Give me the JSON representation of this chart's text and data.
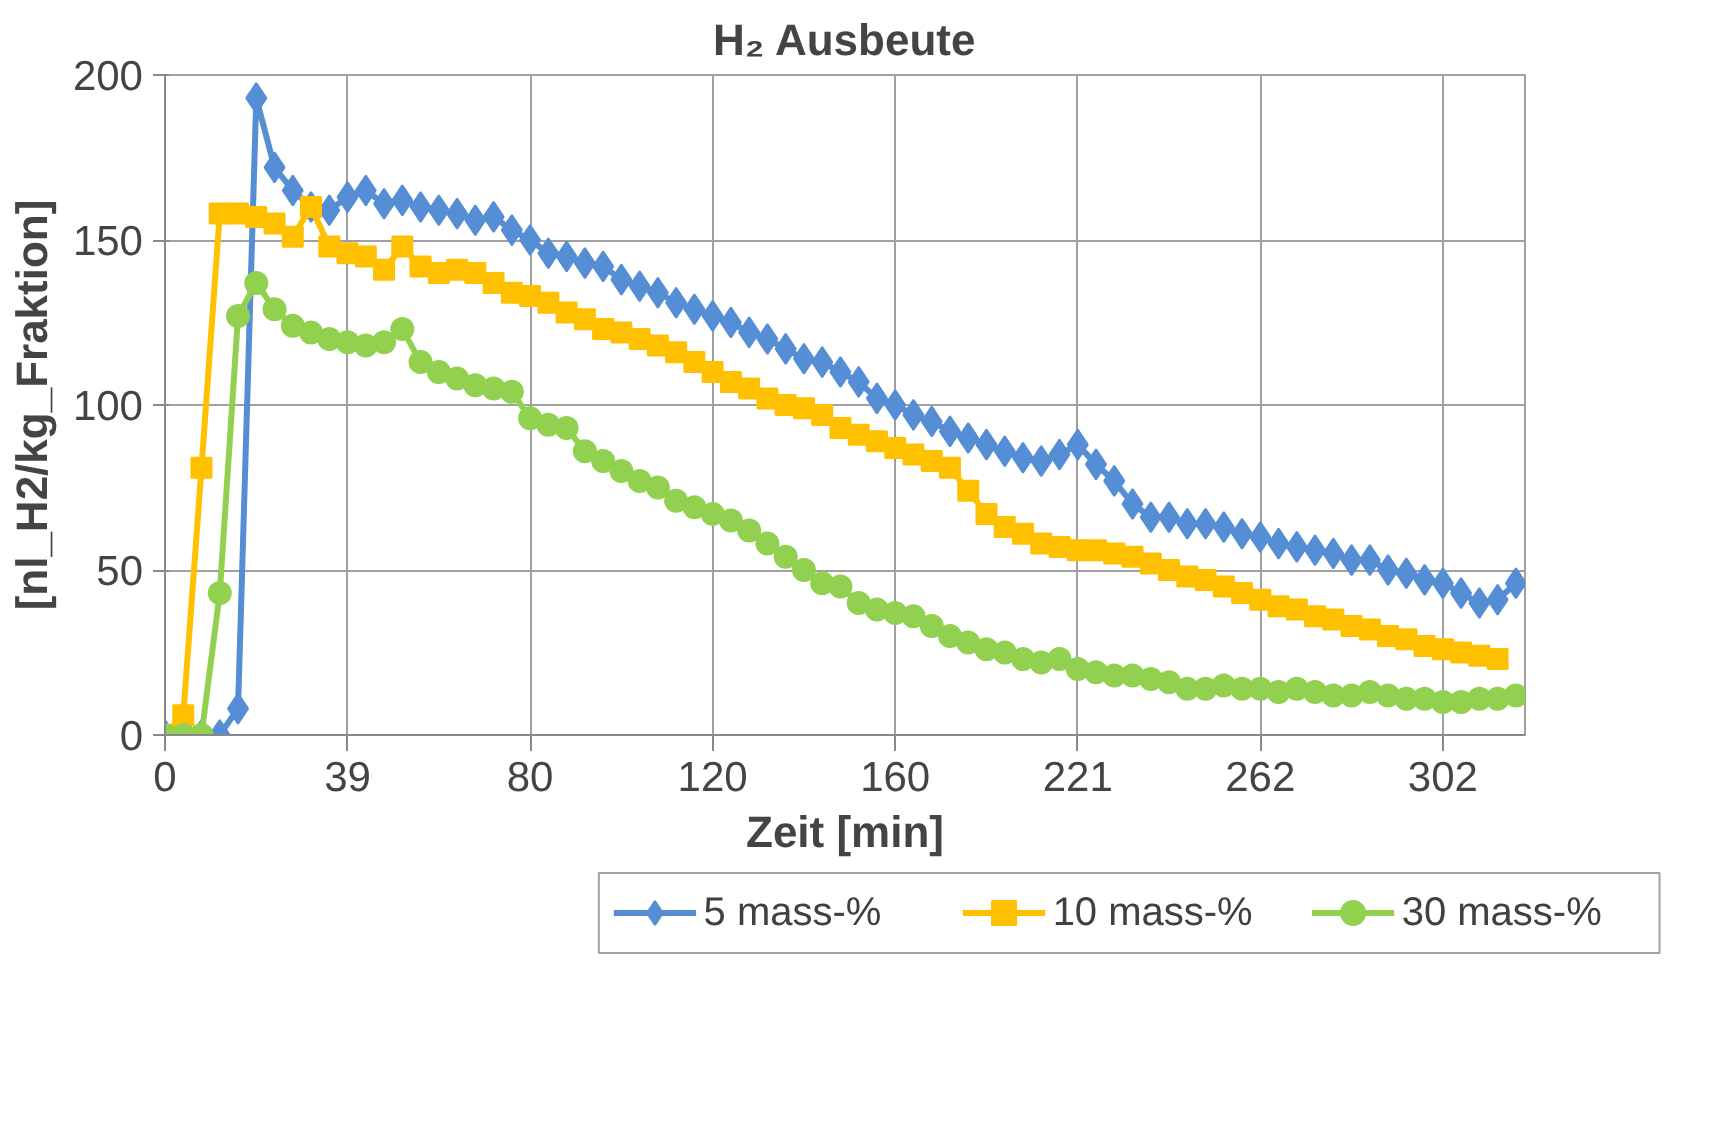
{
  "chart_data": {
    "type": "line",
    "title": "H₂ Ausbeute",
    "xlabel": "Zeit [min]",
    "ylabel": "[nl_H2/kg_Fraktion]",
    "categories": [
      "0",
      null,
      null,
      null,
      null,
      null,
      null,
      null,
      null,
      null,
      "39",
      null,
      null,
      null,
      null,
      null,
      null,
      null,
      null,
      null,
      "80",
      null,
      null,
      null,
      null,
      null,
      null,
      null,
      null,
      null,
      "120",
      null,
      null,
      null,
      null,
      null,
      null,
      null,
      null,
      null,
      "160",
      null,
      null,
      null,
      null,
      null,
      null,
      null,
      null,
      null,
      "221",
      null,
      null,
      null,
      null,
      null,
      null,
      null,
      null,
      null,
      "262",
      null,
      null,
      null,
      null,
      null,
      null,
      null,
      null,
      null,
      "302",
      null,
      null,
      null,
      null
    ],
    "ylim": [
      0,
      200
    ],
    "yticks": [
      0,
      50,
      100,
      150,
      200
    ],
    "grid": true,
    "legend": "bottom",
    "series": [
      {
        "name": "5 mass-%",
        "color": "#558ed5",
        "marker": "diamond",
        "values": [
          0,
          0,
          0,
          0,
          8,
          193,
          172,
          165,
          160,
          159,
          163,
          165,
          161,
          162,
          160,
          159,
          158,
          156,
          157,
          153,
          150,
          146,
          145,
          143,
          142,
          138,
          136,
          134,
          131,
          129,
          127,
          125,
          122,
          120,
          117,
          114,
          113,
          110,
          107,
          102,
          100,
          97,
          95,
          92,
          90,
          88,
          86,
          84,
          83,
          85,
          88,
          82,
          77,
          70,
          66,
          66,
          64,
          64,
          63,
          61,
          60,
          58,
          57,
          56,
          55,
          53,
          53,
          50,
          49,
          47,
          46,
          43,
          40,
          41,
          46
        ]
      },
      {
        "name": "10 mass-%",
        "color": "#ffc000",
        "marker": "square",
        "values": [
          0,
          6,
          81,
          158,
          158,
          157,
          155,
          151,
          160,
          148,
          146,
          145,
          141,
          148,
          142,
          140,
          141,
          140,
          137,
          134,
          133,
          131,
          128,
          126,
          123,
          122,
          120,
          118,
          116,
          113,
          110,
          107,
          105,
          102,
          100,
          99,
          97,
          93,
          91,
          89,
          87,
          85,
          83,
          81,
          74,
          67,
          63,
          61,
          58,
          57,
          56,
          56,
          55,
          54,
          52,
          50,
          48,
          47,
          45,
          43,
          41,
          39,
          38,
          36,
          35,
          33,
          32,
          30,
          29,
          27,
          26,
          25,
          24,
          23,
          null
        ]
      },
      {
        "name": "30 mass-%",
        "color": "#92d050",
        "marker": "circle",
        "values": [
          0,
          0,
          0,
          43,
          127,
          137,
          129,
          124,
          122,
          120,
          119,
          118,
          119,
          123,
          113,
          110,
          108,
          106,
          105,
          104,
          96,
          94,
          93,
          86,
          83,
          80,
          77,
          75,
          71,
          69,
          67,
          65,
          62,
          58,
          54,
          50,
          46,
          45,
          40,
          38,
          37,
          36,
          33,
          30,
          28,
          26,
          25,
          23,
          22,
          23,
          20,
          19,
          18,
          18,
          17,
          16,
          14,
          14,
          15,
          14,
          14,
          13,
          14,
          13,
          12,
          12,
          13,
          12,
          11,
          11,
          10,
          10,
          11,
          11,
          12
        ]
      }
    ]
  }
}
